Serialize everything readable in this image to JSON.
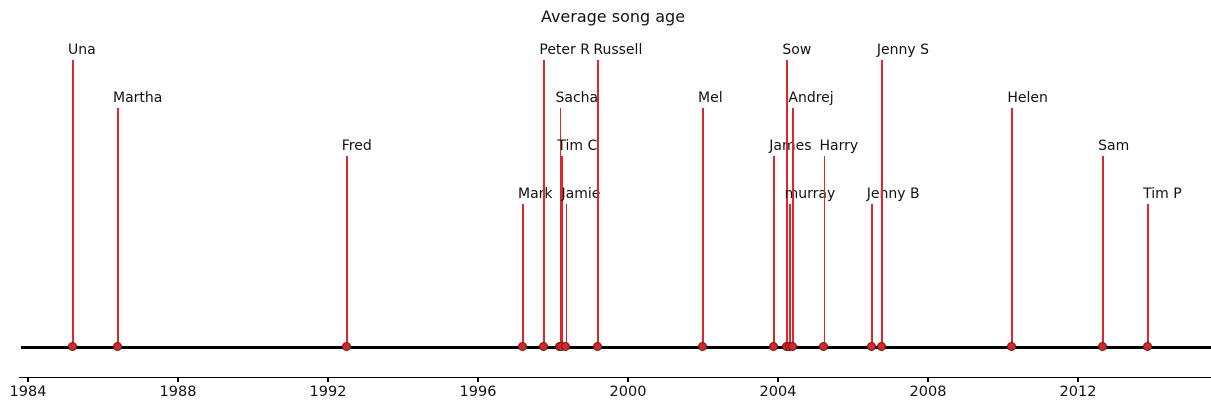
{
  "chart_data": {
    "type": "stem-timeline",
    "title": "Average song age",
    "xlabel": "",
    "ylabel": "",
    "grid": false,
    "legend": null,
    "x_axis": {
      "tick_labels": [
        "1984",
        "1988",
        "1992",
        "1996",
        "2000",
        "2004",
        "2008",
        "2012"
      ],
      "tick_values": [
        1984,
        1988,
        1992,
        1996,
        2000,
        2004,
        2008,
        2012
      ],
      "xlim": [
        1983.75,
        2015.55
      ]
    },
    "level_scale": [
      0,
      6
    ],
    "events": [
      {
        "name": "Una",
        "year": 1985.2,
        "level": 6
      },
      {
        "name": "Martha",
        "year": 1986.4,
        "level": 5
      },
      {
        "name": "Fred",
        "year": 1992.5,
        "level": 4
      },
      {
        "name": "Mark",
        "year": 1997.2,
        "level": 3
      },
      {
        "name": "Peter R",
        "year": 1997.77,
        "level": 6
      },
      {
        "name": "Sacha",
        "year": 1998.2,
        "level": 5
      },
      {
        "name": "Tim C",
        "year": 1998.25,
        "level": 4
      },
      {
        "name": "Jamie",
        "year": 1998.36,
        "level": 3
      },
      {
        "name": "Russell",
        "year": 1999.21,
        "level": 6
      },
      {
        "name": "Mel",
        "year": 2002.0,
        "level": 5
      },
      {
        "name": "James",
        "year": 2003.9,
        "level": 4
      },
      {
        "name": "Sow",
        "year": 2004.25,
        "level": 6
      },
      {
        "name": "murray",
        "year": 2004.31,
        "level": 3
      },
      {
        "name": "Andrej",
        "year": 2004.41,
        "level": 5
      },
      {
        "name": "Harry",
        "year": 2005.24,
        "level": 4
      },
      {
        "name": "Jenny B",
        "year": 2006.5,
        "level": 3
      },
      {
        "name": "Jenny S",
        "year": 2006.77,
        "level": 6
      },
      {
        "name": "Helen",
        "year": 2010.25,
        "level": 5
      },
      {
        "name": "Sam",
        "year": 2012.67,
        "level": 4
      },
      {
        "name": "Tim P",
        "year": 2013.87,
        "level": 3
      }
    ],
    "colors": {
      "stem": "#e0262b",
      "marker_fill": "#d62728",
      "marker_edge": "#701414",
      "baseline": "#000000",
      "text": "#111111"
    }
  }
}
